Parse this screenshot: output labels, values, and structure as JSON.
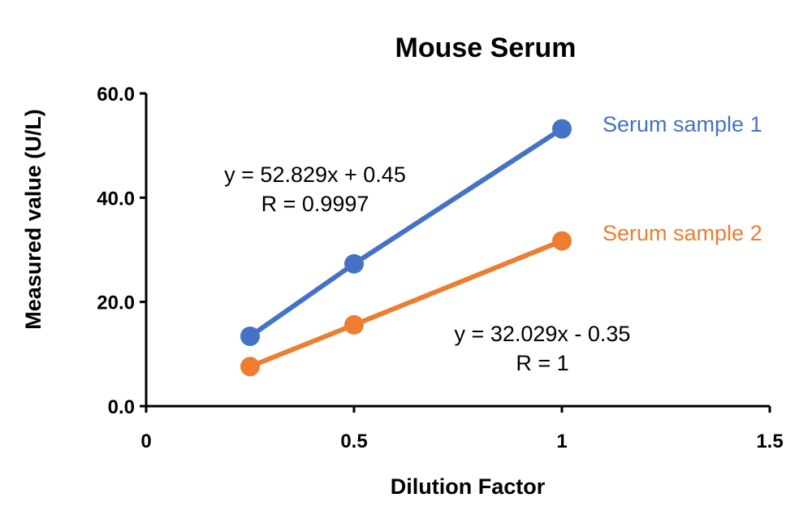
{
  "chart_data": {
    "type": "scatter",
    "title": "Mouse Serum",
    "xlabel": "Dilution Factor",
    "ylabel": "Measured value (U/L)",
    "xlim": [
      0,
      1.5
    ],
    "ylim": [
      0,
      60
    ],
    "xticks": [
      {
        "value": 0,
        "label": "0"
      },
      {
        "value": 0.5,
        "label": "0.5"
      },
      {
        "value": 1,
        "label": "1"
      },
      {
        "value": 1.5,
        "label": "1.5"
      }
    ],
    "yticks": [
      {
        "value": 0,
        "label": "0.0"
      },
      {
        "value": 20,
        "label": "20.0"
      },
      {
        "value": 40,
        "label": "40.0"
      },
      {
        "value": 60,
        "label": "60.0"
      }
    ],
    "series": [
      {
        "name": "Serum sample 1",
        "color": "#4472C4",
        "x": [
          0.25,
          0.5,
          1
        ],
        "y": [
          13.4,
          27.3,
          53.2
        ],
        "equation": "y = 52.829x + 0.45",
        "r_text": "R = 0.9997"
      },
      {
        "name": "Serum sample 2",
        "color": "#ED7D31",
        "x": [
          0.25,
          0.5,
          1
        ],
        "y": [
          7.6,
          15.6,
          31.7
        ],
        "equation": "y = 32.029x - 0.35",
        "r_text": "R = 1"
      }
    ]
  }
}
